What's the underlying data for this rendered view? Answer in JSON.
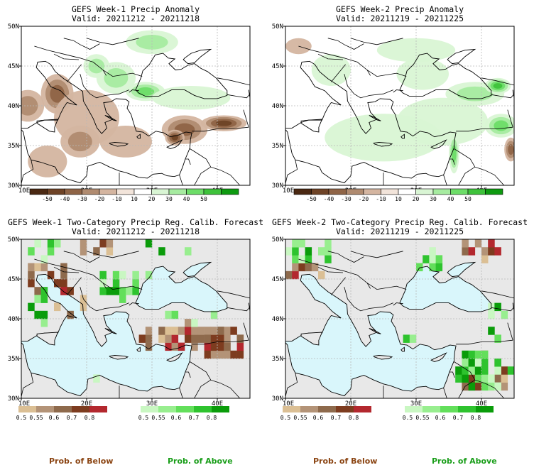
{
  "colors": {
    "land": "#ffffff",
    "sea_prob": "#d9f6fb",
    "nocat_land": "#e8e8e8",
    "coast": "#000000",
    "grid": "#b8b8b8",
    "below_label": "#8b4513",
    "above_label": "#1a9e1a"
  },
  "legend": {
    "below_label": "Prob. of Below",
    "above_label": "Prob. of Above"
  },
  "chart_data": [
    {
      "type": "heatmap",
      "title": "GEFS Week-1 Precip Anomaly",
      "subtitle": "Valid: 20211212 - 20211218",
      "lon_range": [
        10,
        45
      ],
      "lat_range": [
        30,
        50
      ],
      "xticks": [
        "10E",
        "20E",
        "30E",
        "40E"
      ],
      "yticks": [
        "30N",
        "35N",
        "40N",
        "45N",
        "50N"
      ],
      "colorbar": {
        "labels": [
          "-50",
          "-40",
          "-30",
          "-20",
          "-10",
          "10",
          "20",
          "30",
          "40",
          "50"
        ],
        "colors": [
          "#4a2812",
          "#6e4326",
          "#8f6446",
          "#b08b70",
          "#d4b5a0",
          "#f2e4da",
          "#ffffff",
          "#d9f5d4",
          "#a6eba0",
          "#6ddd68",
          "#3ec23b",
          "#0e9a10"
        ]
      },
      "anomaly_regions": [
        {
          "kind": "below",
          "level": 2,
          "lon": 11,
          "lat": 40,
          "rlon": 2.5,
          "rlat": 2
        },
        {
          "kind": "below",
          "level": 3,
          "lon": 15.5,
          "lat": 41.5,
          "rlon": 2.5,
          "rlat": 2.5
        },
        {
          "kind": "below",
          "level": 1,
          "lon": 20,
          "lat": 38.5,
          "rlon": 5,
          "rlat": 3.5
        },
        {
          "kind": "below",
          "level": 2,
          "lon": 19,
          "lat": 35.5,
          "rlon": 3,
          "rlat": 2
        },
        {
          "kind": "below",
          "level": 3,
          "lon": 35,
          "lat": 37,
          "rlon": 3.5,
          "rlat": 1.8
        },
        {
          "kind": "below",
          "level": 4,
          "lon": 41,
          "lat": 37.8,
          "rlon": 3.5,
          "rlat": 1
        },
        {
          "kind": "below",
          "level": 4,
          "lon": 33.5,
          "lat": 36,
          "rlon": 1.5,
          "rlat": 1
        },
        {
          "kind": "below",
          "level": 1,
          "lon": 26,
          "lat": 35.5,
          "rlon": 4,
          "rlat": 2
        },
        {
          "kind": "below",
          "level": 1,
          "lon": 14,
          "lat": 33,
          "rlon": 3,
          "rlat": 2
        },
        {
          "kind": "above",
          "level": 2,
          "lon": 24.5,
          "lat": 43.5,
          "rlon": 3,
          "rlat": 2
        },
        {
          "kind": "above",
          "level": 3,
          "lon": 29,
          "lat": 41.8,
          "rlon": 3,
          "rlat": 1.2
        },
        {
          "kind": "above",
          "level": 2,
          "lon": 21.5,
          "lat": 45,
          "rlon": 2,
          "rlat": 1.5
        },
        {
          "kind": "above",
          "level": 2,
          "lon": 30,
          "lat": 48,
          "rlon": 4,
          "rlat": 1.5
        },
        {
          "kind": "above",
          "level": 1,
          "lon": 36,
          "lat": 41,
          "rlon": 6,
          "rlat": 1.5
        }
      ]
    },
    {
      "type": "heatmap",
      "title": "GEFS Week-2 Precip Anomaly",
      "subtitle": "Valid: 20211219 - 20211225",
      "lon_range": [
        10,
        45
      ],
      "lat_range": [
        30,
        50
      ],
      "xticks": [
        "10E",
        "20E",
        "30E",
        "40E"
      ],
      "yticks": [
        "30N",
        "35N",
        "40N",
        "45N",
        "50N"
      ],
      "colorbar": {
        "labels": [
          "-50",
          "-40",
          "-30",
          "-20",
          "-10",
          "10",
          "20",
          "30",
          "40",
          "50"
        ],
        "colors": [
          "#4a2812",
          "#6e4326",
          "#8f6446",
          "#b08b70",
          "#d4b5a0",
          "#f2e4da",
          "#ffffff",
          "#d9f5d4",
          "#a6eba0",
          "#6ddd68",
          "#3ec23b",
          "#0e9a10"
        ]
      },
      "anomaly_regions": [
        {
          "kind": "above",
          "level": 1,
          "lon": 25,
          "lat": 36,
          "rlon": 9,
          "rlat": 3
        },
        {
          "kind": "above",
          "level": 1,
          "lon": 34,
          "lat": 38,
          "rlon": 7,
          "rlat": 3
        },
        {
          "kind": "above",
          "level": 2,
          "lon": 39,
          "lat": 41.5,
          "rlon": 4.5,
          "rlat": 1.5
        },
        {
          "kind": "above",
          "level": 4,
          "lon": 42.5,
          "lat": 42.5,
          "rlon": 2,
          "rlat": 1
        },
        {
          "kind": "above",
          "level": 3,
          "lon": 43,
          "lat": 37.5,
          "rlon": 2.5,
          "rlat": 1.5
        },
        {
          "kind": "above",
          "level": 3,
          "lon": 35.8,
          "lat": 34,
          "rlon": 0.8,
          "rlat": 2.5
        },
        {
          "kind": "above",
          "level": 1,
          "lon": 31,
          "lat": 44,
          "rlon": 4,
          "rlat": 2
        },
        {
          "kind": "above",
          "level": 1,
          "lon": 17,
          "lat": 44.5,
          "rlon": 3,
          "rlat": 2
        },
        {
          "kind": "above",
          "level": 1,
          "lon": 30,
          "lat": 47,
          "rlon": 6,
          "rlat": 1.5
        },
        {
          "kind": "below",
          "level": 1,
          "lon": 12,
          "lat": 47.5,
          "rlon": 2,
          "rlat": 1
        },
        {
          "kind": "below",
          "level": 3,
          "lon": 44.5,
          "lat": 34.5,
          "rlon": 1,
          "rlat": 1.5
        }
      ]
    },
    {
      "type": "heatmap",
      "title": "GEFS Week-1 Two-Category Precip Reg. Calib. Forecast",
      "subtitle": "Valid: 20211212 - 20211218",
      "lon_range": [
        10,
        45
      ],
      "lat_range": [
        30,
        50
      ],
      "xticks": [
        "10E",
        "20E",
        "30E",
        "40E"
      ],
      "yticks": [
        "30N",
        "35N",
        "40N",
        "45N",
        "50N"
      ],
      "colorbar_below": {
        "labels": [
          "0.5",
          "0.55",
          "0.6",
          "0.7",
          "0.8"
        ],
        "colors": [
          "#dbbf94",
          "#b39377",
          "#8e6a4c",
          "#7d3c1f",
          "#b3282e"
        ]
      },
      "colorbar_above": {
        "labels": [
          "0.5",
          "0.55",
          "0.6",
          "0.7",
          "0.8"
        ],
        "colors": [
          "#c9f7c2",
          "#98ee8f",
          "#63df5b",
          "#2ec32e",
          "#0a9c0a"
        ]
      },
      "prob_regions": [
        {
          "kind": "below",
          "lon": 13.5,
          "lat": 45,
          "rlon": 3.5,
          "rlat": 2.5,
          "density": 0.75
        },
        {
          "kind": "below",
          "lon": 17,
          "lat": 42,
          "rlon": 3,
          "rlat": 2,
          "density": 0.55
        },
        {
          "kind": "below",
          "lon": 21,
          "lat": 48.5,
          "rlon": 3,
          "rlat": 1.2,
          "density": 0.5
        },
        {
          "kind": "below",
          "lon": 35.5,
          "lat": 37.5,
          "rlon": 8,
          "rlat": 2,
          "density": 0.8
        },
        {
          "kind": "below",
          "lon": 40.5,
          "lat": 37,
          "rlon": 3.5,
          "rlat": 2.2,
          "density": 0.85
        },
        {
          "kind": "above",
          "lon": 26,
          "lat": 43.5,
          "rlon": 5,
          "rlat": 2.5,
          "density": 0.6
        },
        {
          "kind": "above",
          "lon": 13,
          "lat": 48.5,
          "rlon": 3,
          "rlat": 1.5,
          "density": 0.5
        },
        {
          "kind": "above",
          "lon": 13,
          "lat": 41.5,
          "rlon": 2,
          "rlat": 2,
          "density": 0.5
        },
        {
          "kind": "above",
          "lon": 36,
          "lat": 40.2,
          "rlon": 6,
          "rlat": 1,
          "density": 0.5
        },
        {
          "kind": "above",
          "lon": 19,
          "lat": 32.2,
          "rlon": 4,
          "rlat": 1,
          "density": 0.45
        },
        {
          "kind": "above",
          "lon": 32,
          "lat": 48.5,
          "rlon": 4,
          "rlat": 1.5,
          "density": 0.3
        }
      ]
    },
    {
      "type": "heatmap",
      "title": "GEFS Week-2 Two-Category Precip Reg. Calib. Forecast",
      "subtitle": "Valid: 20211219 - 20211225",
      "lon_range": [
        10,
        45
      ],
      "lat_range": [
        30,
        50
      ],
      "xticks": [
        "10E",
        "20E",
        "30E",
        "40E"
      ],
      "yticks": [
        "30N",
        "35N",
        "40N",
        "45N",
        "50N"
      ],
      "colorbar_below": {
        "labels": [
          "0.5",
          "0.55",
          "0.6",
          "0.7",
          "0.8"
        ],
        "colors": [
          "#dbbf94",
          "#b39377",
          "#8e6a4c",
          "#7d3c1f",
          "#b3282e"
        ]
      },
      "colorbar_above": {
        "labels": [
          "0.5",
          "0.55",
          "0.6",
          "0.7",
          "0.8"
        ],
        "colors": [
          "#c9f7c2",
          "#98ee8f",
          "#63df5b",
          "#2ec32e",
          "#0a9c0a"
        ]
      },
      "prob_regions": [
        {
          "kind": "below",
          "lon": 12.5,
          "lat": 45,
          "rlon": 2.5,
          "rlat": 2,
          "density": 0.8
        },
        {
          "kind": "below",
          "lon": 40.5,
          "lat": 48.5,
          "rlon": 4,
          "rlat": 1.5,
          "density": 0.5
        },
        {
          "kind": "below",
          "lon": 40.5,
          "lat": 32.5,
          "rlon": 4,
          "rlat": 2.5,
          "density": 0.55
        },
        {
          "kind": "above",
          "lon": 13.5,
          "lat": 48,
          "rlon": 3.5,
          "rlat": 2,
          "density": 0.5
        },
        {
          "kind": "above",
          "lon": 32,
          "lat": 46.5,
          "rlon": 3,
          "rlat": 1.5,
          "density": 0.4
        },
        {
          "kind": "above",
          "lon": 42,
          "lat": 41,
          "rlon": 2.5,
          "rlat": 1.2,
          "density": 0.7
        },
        {
          "kind": "above",
          "lon": 40,
          "lat": 33,
          "rlon": 4.5,
          "rlat": 3,
          "density": 0.7
        },
        {
          "kind": "above",
          "lon": 29,
          "lat": 36.8,
          "rlon": 1.5,
          "rlat": 0.6,
          "density": 0.4
        },
        {
          "kind": "above",
          "lon": 42.5,
          "lat": 38,
          "rlon": 2,
          "rlat": 1,
          "density": 0.4
        }
      ]
    }
  ]
}
